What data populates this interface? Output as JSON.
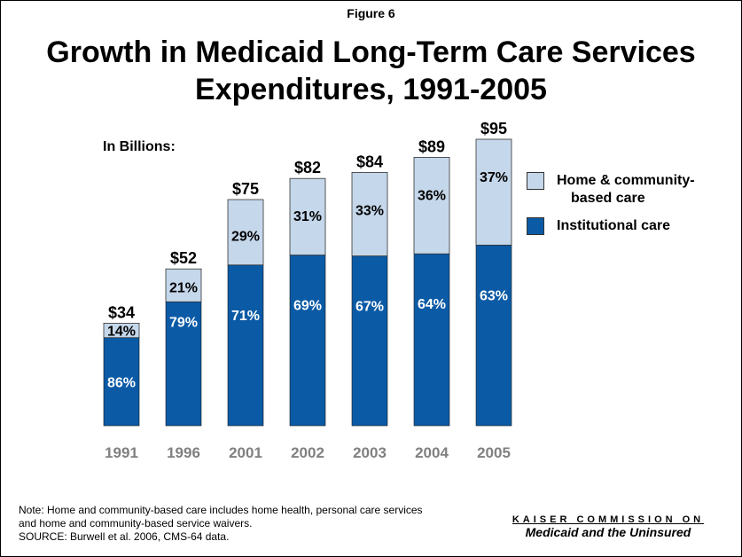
{
  "figure_label": "Figure 6",
  "title_line1": "Growth in Medicaid Long-Term Care Services",
  "title_line2": "Expenditures, 1991-2005",
  "units_label": "In Billions:",
  "legend": [
    {
      "label_line1": "Home & community-",
      "label_line2": "based care",
      "color": "#c5d7ea"
    },
    {
      "label_line1": "Institutional care",
      "label_line2": "",
      "color": "#0b5aa5"
    }
  ],
  "note_lines": [
    "Note: Home and  community-based care includes home health, personal care services",
    "and home and community-based service waivers.",
    "SOURCE: Burwell et al. 2006, CMS-64 data."
  ],
  "source_org_line1": "KAISER COMMISSION ON",
  "source_org_line2": "Medicaid and the Uninsured",
  "chart_data": {
    "type": "bar",
    "stacked": true,
    "categories": [
      "1991",
      "1996",
      "2001",
      "2002",
      "2003",
      "2004",
      "2005"
    ],
    "totals": [
      34,
      52,
      75,
      82,
      84,
      89,
      95
    ],
    "total_labels": [
      "$34",
      "$52",
      "$75",
      "$82",
      "$84",
      "$89",
      "$95"
    ],
    "series": [
      {
        "name": "Institutional care",
        "values": [
          29.2,
          41.1,
          53.3,
          56.6,
          56.3,
          57.0,
          59.9
        ],
        "percent_labels": [
          "86%",
          "79%",
          "71%",
          "69%",
          "67%",
          "64%",
          "63%"
        ],
        "color": "#0b5aa5"
      },
      {
        "name": "Home & community-based care",
        "values": [
          4.8,
          10.9,
          21.7,
          25.4,
          27.7,
          32.0,
          35.1
        ],
        "percent_labels": [
          "14%",
          "21%",
          "29%",
          "31%",
          "33%",
          "36%",
          "37%"
        ],
        "color": "#c5d7ea"
      }
    ],
    "ylim": [
      0,
      100
    ],
    "grid": false,
    "legend_position": "right"
  }
}
